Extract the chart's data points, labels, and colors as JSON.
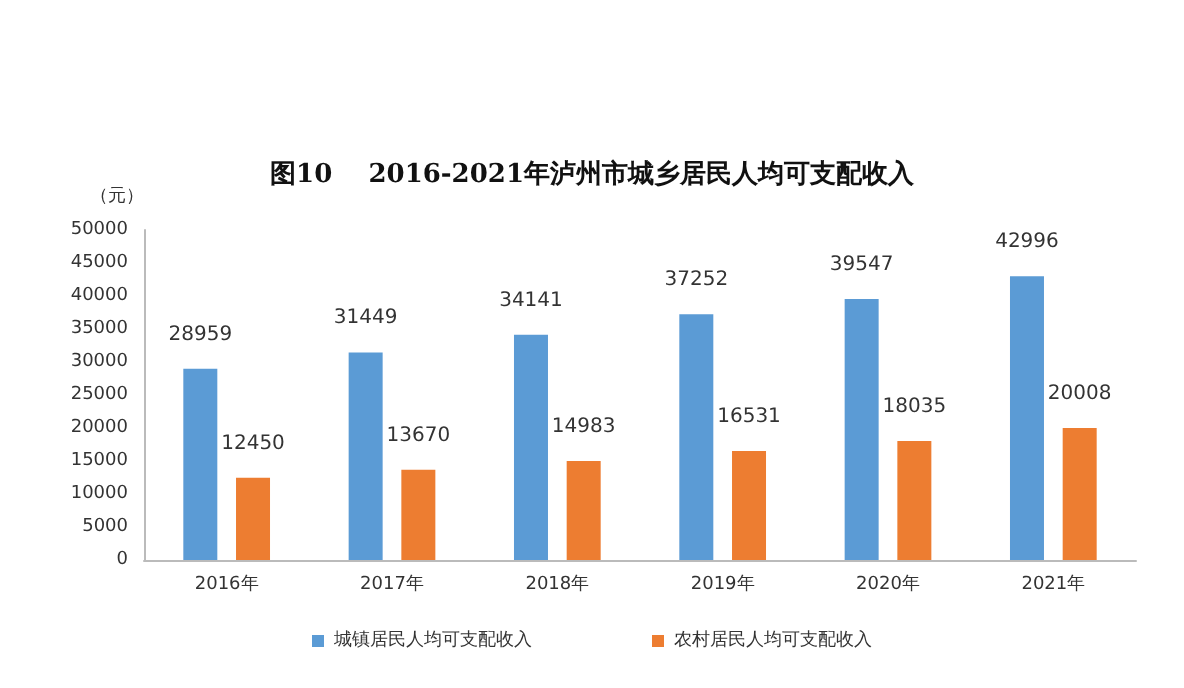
{
  "chart_data": {
    "type": "bar",
    "title": "图10    2016-2021年泸州市城乡居民人均可支配收入",
    "ylabel": "（元）",
    "categories": [
      "2016年",
      "2017年",
      "2018年",
      "2019年",
      "2020年",
      "2021年"
    ],
    "series": [
      {
        "name": "城镇居民人均可支配收入",
        "color": "#5b9bd5",
        "values": [
          28959,
          31449,
          34141,
          37252,
          39547,
          42996
        ]
      },
      {
        "name": "农村居民人均可支配收入",
        "color": "#ed7d31",
        "values": [
          12450,
          13670,
          14983,
          16531,
          18035,
          20008
        ]
      }
    ],
    "ylim": [
      0,
      50000
    ],
    "yticks": [
      0,
      5000,
      10000,
      15000,
      20000,
      25000,
      30000,
      35000,
      40000,
      45000,
      50000
    ],
    "grid": false,
    "legend": "bottom",
    "data_labels": true
  }
}
